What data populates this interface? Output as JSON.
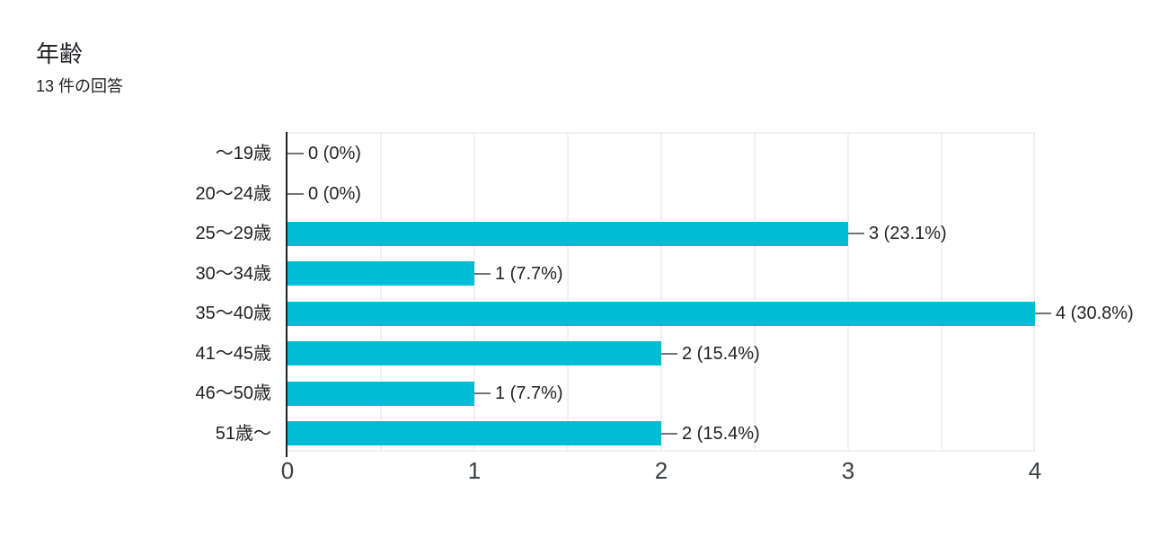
{
  "chart_data": {
    "type": "bar",
    "orientation": "horizontal",
    "title": "年齢",
    "subtitle": "13 件の回答",
    "categories": [
      "～19歳",
      "20～24歳",
      "25～29歳",
      "30～34歳",
      "35～40歳",
      "41～45歳",
      "46～50歳",
      "51歳～"
    ],
    "values": [
      0,
      0,
      3,
      1,
      4,
      2,
      1,
      2
    ],
    "value_labels": [
      "0 (0%)",
      "0 (0%)",
      "3 (23.1%)",
      "1 (7.7%)",
      "4 (30.8%)",
      "2 (15.4%)",
      "1 (7.7%)",
      "2 (15.4%)"
    ],
    "x_ticks": [
      "0",
      "1",
      "2",
      "3",
      "4"
    ],
    "xlim": [
      0,
      4
    ],
    "grid": true,
    "gridline_interval": 0.5,
    "legend": "none",
    "colors": {
      "bar": "#00bcd4",
      "leader_line": "#757575",
      "gridline": "#f1f1f1",
      "axis": "#202124",
      "label_text": "#202124",
      "tick_text": "#3c4043"
    }
  }
}
